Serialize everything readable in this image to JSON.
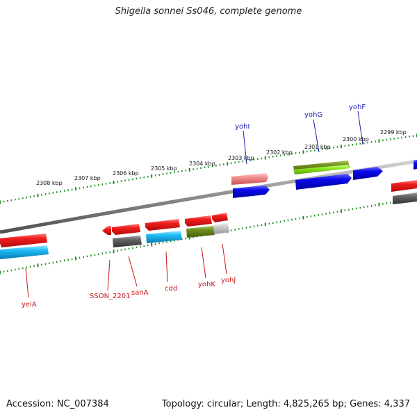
{
  "title": "Shigella sonnei Ss046, complete genome",
  "footer": {
    "accession": "Accession: NC_007384",
    "summary": "Topology: circular; Length: 4,825,265 bp; Genes: 4,337"
  },
  "scale_labels": [
    "2308 kbp",
    "2307 kbp",
    "2306 kbp",
    "2305 kbp",
    "2304 kbp",
    "2303 kbp",
    "2302 kbp",
    "2301 kbp",
    "2300 kbp",
    "2299 kbp"
  ],
  "gene_labels_top": [
    "yohI",
    "yohG",
    "yohF"
  ],
  "gene_labels_bottom": [
    "yeiA",
    "SSON_2201",
    "sanA",
    "cdd",
    "yohK",
    "yohJ"
  ],
  "colors": {
    "red": "#e8141c",
    "blue": "#0a0ae0",
    "cyan": "#14b4f0",
    "gray": "#5c5c5c",
    "olive": "#6e8c1e",
    "lime": "#8ce61e",
    "pink": "#e87878",
    "lightgray": "#c0c0c0",
    "tick": "#1e8c1e",
    "backbone": "#8a8a8a",
    "label_top": "#1e1eb4",
    "label_bottom": "#c81414"
  }
}
